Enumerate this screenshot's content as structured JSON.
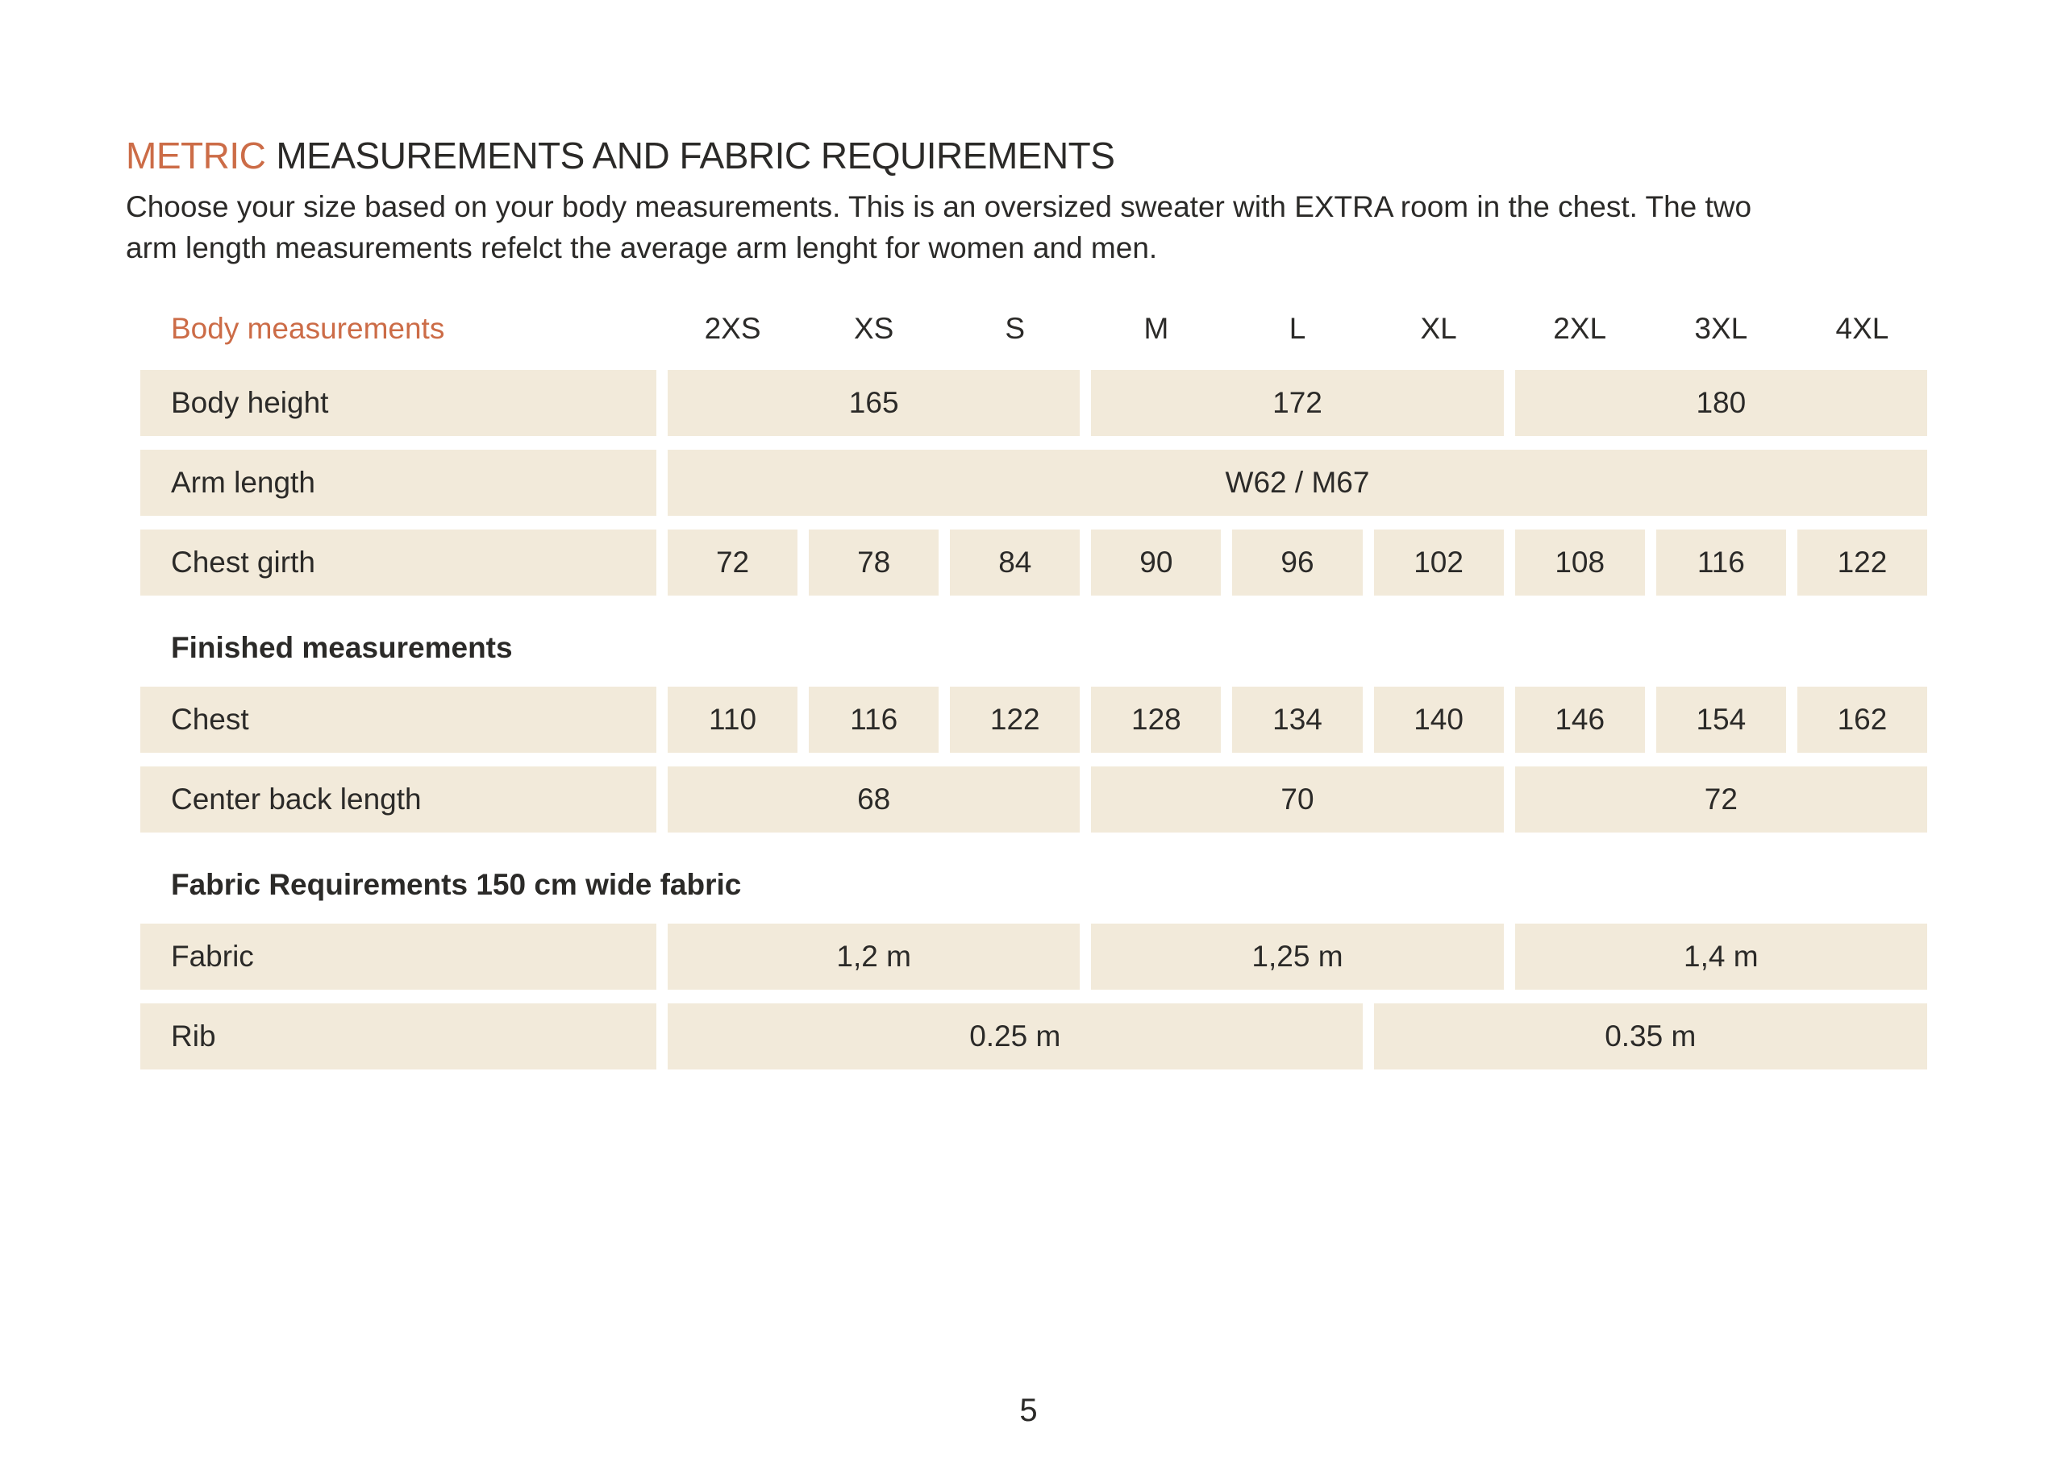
{
  "colors": {
    "accent": "#CC6C47",
    "cell_bg": "#F2EADA",
    "text": "#2B2A28"
  },
  "header": {
    "title_highlight": "METRIC",
    "title_rest": "MEASUREMENTS AND FABRIC REQUIREMENTS",
    "intro_lines": [
      "Choose your size based on your body measurements. This is an oversized sweater with EXTRA room in the chest. The two",
      "arm length measurements refelct the average arm lenght for women and men."
    ]
  },
  "table": {
    "column_header_label": "Body measurements",
    "size_columns": [
      "2XS",
      "XS",
      "S",
      "M",
      "L",
      "XL",
      "2XL",
      "3XL",
      "4XL"
    ],
    "sections": [
      {
        "header": "",
        "rows": [
          {
            "label": "Body height",
            "cells": [
              {
                "text": "165",
                "span": 3
              },
              {
                "text": "172",
                "span": 3
              },
              {
                "text": "180",
                "span": 3
              }
            ]
          },
          {
            "label": "Arm length",
            "cells": [
              {
                "text": "W62 / M67",
                "span": 9
              }
            ]
          },
          {
            "label": "Chest girth",
            "cells": [
              {
                "text": "72",
                "span": 1
              },
              {
                "text": "78",
                "span": 1
              },
              {
                "text": "84",
                "span": 1
              },
              {
                "text": "90",
                "span": 1
              },
              {
                "text": "96",
                "span": 1
              },
              {
                "text": "102",
                "span": 1
              },
              {
                "text": "108",
                "span": 1
              },
              {
                "text": "116",
                "span": 1
              },
              {
                "text": "122",
                "span": 1
              }
            ]
          }
        ]
      },
      {
        "header": "Finished measurements",
        "rows": [
          {
            "label": "Chest",
            "cells": [
              {
                "text": "110",
                "span": 1
              },
              {
                "text": "116",
                "span": 1
              },
              {
                "text": "122",
                "span": 1
              },
              {
                "text": "128",
                "span": 1
              },
              {
                "text": "134",
                "span": 1
              },
              {
                "text": "140",
                "span": 1
              },
              {
                "text": "146",
                "span": 1
              },
              {
                "text": "154",
                "span": 1
              },
              {
                "text": "162",
                "span": 1
              }
            ]
          },
          {
            "label": "Center back length",
            "cells": [
              {
                "text": "68",
                "span": 3
              },
              {
                "text": "70",
                "span": 3
              },
              {
                "text": "72",
                "span": 3
              }
            ]
          }
        ]
      },
      {
        "header": "Fabric Requirements 150 cm wide fabric",
        "rows": [
          {
            "label": "Fabric",
            "cells": [
              {
                "text": "1,2 m",
                "span": 3
              },
              {
                "text": "1,25 m",
                "span": 3
              },
              {
                "text": "1,4 m",
                "span": 3
              }
            ]
          },
          {
            "label": "Rib",
            "cells": [
              {
                "text": "0.25 m",
                "span": 5
              },
              {
                "text": "0.35 m",
                "span": 4
              }
            ]
          }
        ]
      }
    ]
  },
  "footer": {
    "page_number": "5"
  }
}
